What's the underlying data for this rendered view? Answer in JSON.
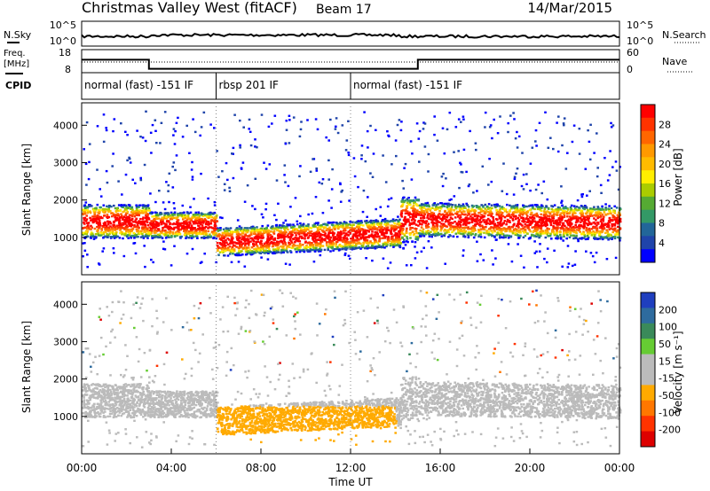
{
  "header": {
    "station": "Christmas Valley West (fitACF)",
    "beam": "Beam 17",
    "date": "14/Mar/2015"
  },
  "strip_labels": {
    "nsky": "N.Sky",
    "nsearch": "N.Search",
    "freq_line1": "Freq.",
    "freq_line2": "[MHz]",
    "nave": "Nave",
    "cpid": "CPID"
  },
  "strip_ticks": {
    "nsky_left": [
      "10^5",
      "10^0"
    ],
    "nsky_right": [
      "10^5",
      "10^0"
    ],
    "freq_left": [
      "18",
      "8"
    ],
    "freq_right": [
      "60",
      "0"
    ]
  },
  "cpid_segments": [
    {
      "label": "normal (fast) -151 IF",
      "start_h": 0
    },
    {
      "label": "rbsp 201 IF",
      "start_h": 6
    },
    {
      "label": "normal (fast) -151 IF",
      "start_h": 12
    }
  ],
  "chart_data": [
    {
      "type": "heatmap",
      "panel": "power",
      "ylabel": "Slant Range [km]",
      "yticks": [
        "4000",
        "3000",
        "2000",
        "1000"
      ],
      "ylim": [
        0,
        4600
      ],
      "colorbar_label": "Power [dB]",
      "colorbar_ticks": [
        "28",
        "24",
        "20",
        "16",
        "12",
        "8",
        "4"
      ],
      "colorbar_colors": [
        "#ff0000",
        "#ff3300",
        "#ff6600",
        "#ff9900",
        "#ffbb00",
        "#ffee00",
        "#aacc00",
        "#55aa33",
        "#339966",
        "#226699",
        "#1f44aa",
        "#0000ff"
      ]
    },
    {
      "type": "heatmap",
      "panel": "velocity",
      "ylabel": "Slant Range [km]",
      "yticks": [
        "4000",
        "3000",
        "2000",
        "1000"
      ],
      "ylim": [
        0,
        4600
      ],
      "colorbar_label": "Velocity [m s⁻¹]",
      "colorbar_ticks": [
        "200",
        "100",
        "50",
        "15",
        "-15",
        "-50",
        "-100",
        "-200"
      ],
      "colorbar_colors": [
        "#1f3fbf",
        "#2e6b9e",
        "#3a8a5a",
        "#66cc33",
        "#bbbbbb",
        "#bbbbbb",
        "#ffaa00",
        "#ff7700",
        "#ff3300",
        "#dd0000"
      ]
    }
  ],
  "xaxis": {
    "label": "Time UT",
    "ticks": [
      "00:00",
      "04:00",
      "08:00",
      "12:00",
      "16:00",
      "20:00",
      "00:00"
    ],
    "xlim": [
      0,
      24
    ]
  }
}
